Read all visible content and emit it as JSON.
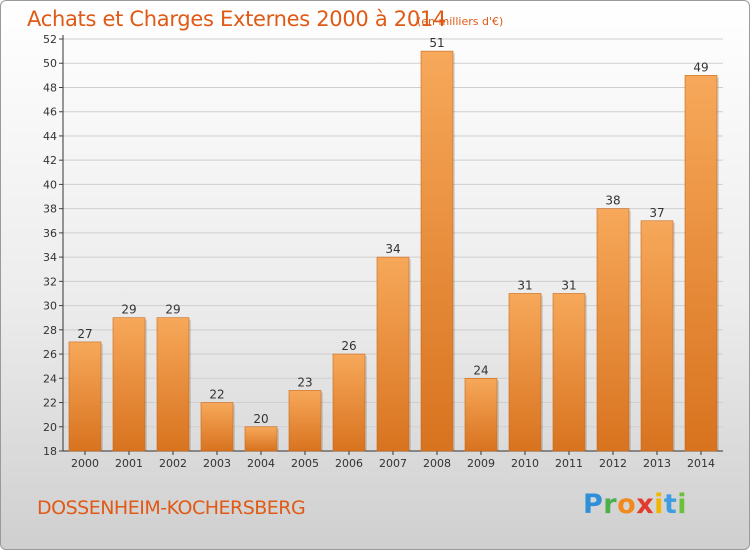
{
  "header": {
    "title": "Achats et Charges Externes 2000 à 2014",
    "unit": "(en milliers d'€)"
  },
  "footer": {
    "commune": "DOSSENHEIM-KOCHERSBERG",
    "logo": "Proxiti"
  },
  "colors": {
    "accent": "#e05a16",
    "bar_top": "#f7a85a",
    "bar_bottom": "#d8731f"
  },
  "chart_data": {
    "type": "bar",
    "categories": [
      "2000",
      "2001",
      "2002",
      "2003",
      "2004",
      "2005",
      "2006",
      "2007",
      "2008",
      "2009",
      "2010",
      "2011",
      "2012",
      "2013",
      "2014"
    ],
    "values": [
      27,
      29,
      29,
      22,
      20,
      23,
      26,
      34,
      51,
      24,
      31,
      31,
      38,
      37,
      49
    ],
    "ylim": [
      18,
      52
    ],
    "yticks": [
      18,
      20,
      22,
      24,
      26,
      28,
      30,
      32,
      34,
      36,
      38,
      40,
      42,
      44,
      46,
      48,
      50,
      52
    ],
    "grid": true,
    "data_labels": true
  }
}
